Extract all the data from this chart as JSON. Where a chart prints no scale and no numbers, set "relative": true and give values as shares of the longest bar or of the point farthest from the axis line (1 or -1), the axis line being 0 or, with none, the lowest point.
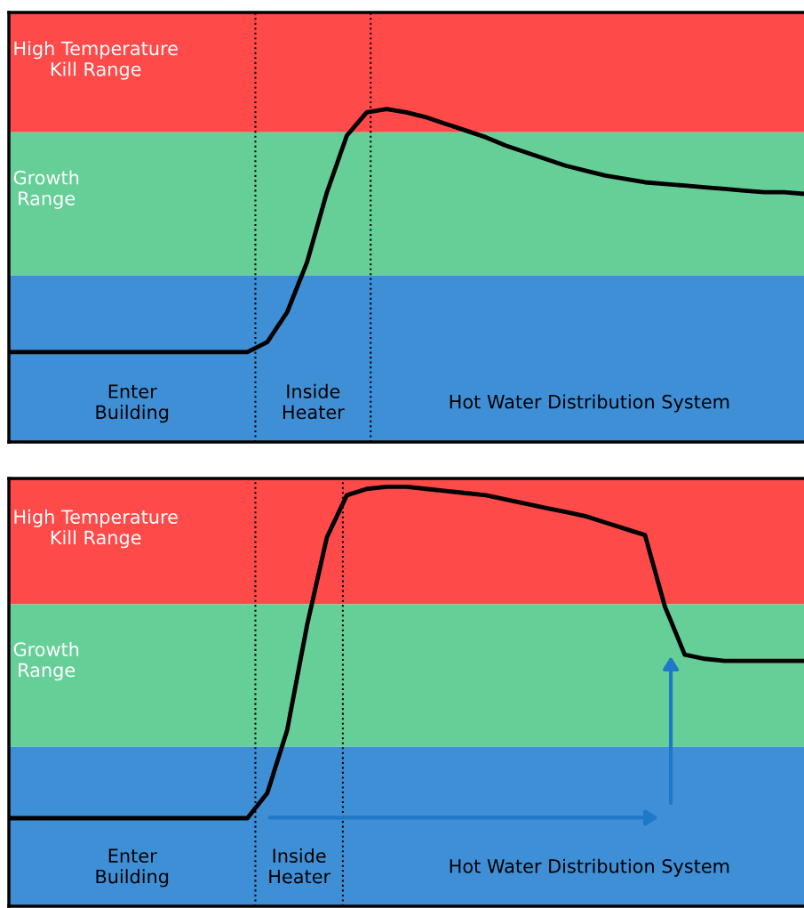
{
  "chart_data": [
    {
      "type": "line",
      "relative": true,
      "legend": false,
      "marker": "none",
      "line_style": "solid",
      "categories": [
        null,
        null,
        null,
        null,
        null,
        null,
        null,
        null,
        null,
        null,
        null,
        null,
        null,
        null,
        null,
        null,
        null,
        null,
        null,
        null,
        null,
        null,
        null,
        null,
        null,
        null,
        null,
        null,
        null,
        null,
        null,
        null,
        null,
        null,
        null,
        null,
        null,
        null,
        null,
        null,
        null
      ],
      "series": [
        {
          "color": "#000000",
          "values": [
            0.27,
            0.27,
            0.27,
            0.27,
            0.27,
            0.27,
            0.27,
            0.27,
            0.27,
            0.27,
            0.27,
            0.27,
            0.27,
            0.3,
            0.39,
            0.54,
            0.75,
            0.92,
            0.99,
            1.0,
            0.99,
            0.975,
            0.955,
            0.935,
            0.915,
            0.89,
            0.87,
            0.85,
            0.83,
            0.815,
            0.8,
            0.79,
            0.78,
            0.775,
            0.77,
            0.765,
            0.76,
            0.755,
            0.75,
            0.75,
            0.745
          ]
        }
      ],
      "bands": [
        {
          "axis": "y",
          "from": 0.93,
          "to": 1.29,
          "label": "High Temperature\nKill Range",
          "color": "#ff4a4a"
        },
        {
          "axis": "y",
          "from": 0.5,
          "to": 0.93,
          "label": "Growth\nRange",
          "color": "#66cf98"
        },
        {
          "axis": "y",
          "from": 0,
          "to": 0.5,
          "label": null,
          "color": "#3f8fd6"
        }
      ],
      "annotations": [
        "Enter\nBuilding",
        "Inside\nHeater",
        "Hot Water Distribution System"
      ]
    },
    {
      "type": "line",
      "relative": true,
      "legend": false,
      "marker": "none",
      "line_style": "solid",
      "categories": [
        null,
        null,
        null,
        null,
        null,
        null,
        null,
        null,
        null,
        null,
        null,
        null,
        null,
        null,
        null,
        null,
        null,
        null,
        null,
        null,
        null,
        null,
        null,
        null,
        null,
        null,
        null,
        null,
        null,
        null,
        null,
        null,
        null,
        null,
        null,
        null,
        null,
        null,
        null,
        null,
        null
      ],
      "series": [
        {
          "color": "#000000",
          "values": [
            0.21,
            0.21,
            0.21,
            0.21,
            0.21,
            0.21,
            0.21,
            0.21,
            0.21,
            0.21,
            0.21,
            0.21,
            0.21,
            0.27,
            0.42,
            0.67,
            0.88,
            0.98,
            0.995,
            1.0,
            1.0,
            0.995,
            0.99,
            0.985,
            0.98,
            0.97,
            0.96,
            0.95,
            0.94,
            0.93,
            0.915,
            0.9,
            0.885,
            0.715,
            0.6,
            0.59,
            0.585,
            0.585,
            0.585,
            0.585,
            0.585
          ]
        }
      ],
      "bands": [
        {
          "axis": "y",
          "from": 0.72,
          "to": 1.02,
          "label": "High Temperature\nKill Range",
          "color": "#ff4a4a"
        },
        {
          "axis": "y",
          "from": 0.38,
          "to": 0.72,
          "label": "Growth\nRange",
          "color": "#66cf98"
        },
        {
          "axis": "y",
          "from": 0,
          "to": 0.38,
          "label": null,
          "color": "#3f8fd6"
        }
      ],
      "annotations": [
        "Enter\nBuilding",
        "Inside\nHeater",
        "Hot Water Distribution System"
      ]
    }
  ]
}
